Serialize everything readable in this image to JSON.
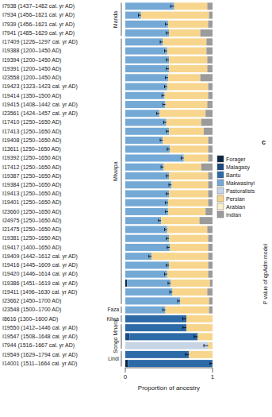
{
  "chart_data": {
    "type": "bar",
    "orientation": "horizontal",
    "stacked": true,
    "x_label": "Proportion of ancestry",
    "annotations": [
      "c",
      "P value of qpAdm model"
    ],
    "categories": [
      "I7938 (1437–1482 cal. yr AD)",
      "I7934 (1456–1621 cal. yr AD)",
      "I7939 (1456–1621 cal. yr AD)",
      "I7941 (1485–1629 cal. yr AD)",
      "I17409 (1226–1297 cal. yr AD)",
      "I19388 (1200–1450 AD)",
      "I19394 (1200–1450 AD)",
      "I19391 (1200–1450 AD)",
      "I23558 (1200–1450 AD)",
      "I19423 (1323–1423 cal. yr AD)",
      "I19414 (1350–1500 AD)",
      "I19415 (1408–1442 cal. yr AD)",
      "I23561 (1424–1457 cal. yr AD)",
      "I17410 (1250–1650 AD)",
      "I17413 (1250–1650 AD)",
      "I19408 (1250–1650 AD)",
      "I13611 (1250–1650 AD)",
      "I19392 (1250–1650 AD)",
      "I17412 (1250–1650 AD)",
      "I19387 (1250–1650 AD)",
      "I19384 (1250–1650 AD)",
      "I19413 (1250–1650 AD)",
      "I19401 (1250–1650 AD)",
      "I23660 (1250–1650 AD)",
      "I24975 (1250–1650 AD)",
      "I21475 (1250–1650 AD)",
      "I19381 (1250–1650 AD)",
      "I19417 (1400–1650 AD)",
      "I19409 (1442–1612 cal. yr AD)",
      "I19416 (1445–1609 cal. yr AD)",
      "I19420 (1446–1614 cal. yr AD)",
      "I19386 (1451–1619 cal. yr AD)",
      "I19411 (1496–1630 cal. yr AD)",
      "I23662 (1450–1700 AD)",
      "I23548 (1500–1700 AD)",
      "I8616 (1300–1600 AD)",
      "I19550 (1412–1446 cal. yr AD)",
      "I19547 (1508–1648 cal. yr AD)",
      "I7944 (1516–1667 cal. yr AD)",
      "I19549 (1629–1794 cal. yr AD)",
      "I14001 (1511–1664 cal. yr AD)"
    ],
    "groups": [
      {
        "label": "Manda",
        "count": 4
      },
      {
        "label": "Mtwapa",
        "count": 30
      },
      {
        "label": "Faza",
        "count": 1
      },
      {
        "label": "Kilwa",
        "count": 1
      },
      {
        "label": "Songo Mnara",
        "count": 3
      },
      {
        "label": "Lindi",
        "count": 2
      }
    ],
    "series": [
      {
        "name": "Forager",
        "color": "#0b2545",
        "values": [
          0,
          0,
          0,
          0,
          0,
          0,
          0,
          0,
          0,
          0,
          0,
          0,
          0,
          0,
          0,
          0,
          0,
          0,
          0,
          0,
          0,
          0,
          0,
          0,
          0,
          0,
          0,
          0,
          0,
          0,
          0,
          0.02,
          0,
          0,
          0,
          0,
          0,
          0,
          0,
          0,
          0.03
        ]
      },
      {
        "name": "Malagasy",
        "color": "#1b4a82",
        "values": [
          0,
          0,
          0,
          0,
          0,
          0,
          0,
          0,
          0,
          0,
          0,
          0,
          0,
          0,
          0,
          0,
          0,
          0,
          0,
          0,
          0,
          0,
          0,
          0,
          0,
          0,
          0,
          0,
          0,
          0,
          0,
          0,
          0,
          0,
          0,
          0,
          0,
          0.05,
          0,
          0,
          0
        ]
      },
      {
        "name": "Bantu",
        "color": "#2c6aa8",
        "values": [
          0,
          0,
          0,
          0,
          0,
          0,
          0,
          0,
          0,
          0,
          0,
          0,
          0,
          0,
          0,
          0,
          0,
          0,
          0,
          0,
          0,
          0,
          0,
          0,
          0,
          0,
          0,
          0,
          0,
          0,
          0,
          0,
          0,
          0,
          0,
          0.7,
          0.7,
          0.78,
          0,
          0.73,
          0.97
        ]
      },
      {
        "name": "Makwasinyi",
        "color": "#74a9d6",
        "values": [
          0.56,
          0.18,
          0.49,
          0.5,
          0.43,
          0.48,
          0.5,
          0.5,
          0.49,
          0.48,
          0.45,
          0.46,
          0.39,
          0.47,
          0.5,
          0.43,
          0.51,
          0.67,
          0.44,
          0.5,
          0.53,
          0.5,
          0.49,
          0.49,
          0.41,
          0.48,
          0.5,
          0.51,
          0.3,
          0.5,
          0.48,
          0.5,
          0.54,
          0.63,
          0.46,
          0,
          0,
          0,
          0,
          0,
          0
        ]
      },
      {
        "name": "Pastoralists",
        "color": "#c7d4e6",
        "values": [
          0,
          0,
          0,
          0,
          0,
          0,
          0,
          0,
          0,
          0,
          0,
          0,
          0,
          0,
          0,
          0,
          0,
          0,
          0,
          0,
          0,
          0,
          0,
          0,
          0,
          0,
          0,
          0,
          0,
          0,
          0,
          0,
          0,
          0,
          0,
          0,
          0,
          0,
          0.95,
          0,
          0
        ]
      },
      {
        "name": "Persian",
        "color": "#f7d58c",
        "values": [
          0.38,
          0.78,
          0.46,
          0.36,
          0.5,
          0.45,
          0.44,
          0.44,
          0.37,
          0.47,
          0.5,
          0.48,
          0.53,
          0.4,
          0.4,
          0.52,
          0.44,
          0.28,
          0.43,
          0.45,
          0.42,
          0.45,
          0.46,
          0.43,
          0.44,
          0.46,
          0.45,
          0.44,
          0.65,
          0.45,
          0.47,
          0.45,
          0.4,
          0.33,
          0.5,
          0.3,
          0.3,
          0.17,
          0.05,
          0.27,
          0
        ]
      },
      {
        "name": "Arabian",
        "color": "#fbf0cc",
        "values": [
          0,
          0,
          0,
          0,
          0,
          0,
          0,
          0,
          0,
          0,
          0,
          0,
          0,
          0,
          0,
          0,
          0,
          0,
          0,
          0,
          0,
          0,
          0,
          0,
          0,
          0,
          0,
          0,
          0,
          0,
          0,
          0,
          0,
          0,
          0,
          0,
          0,
          0,
          0,
          0,
          0
        ]
      },
      {
        "name": "Indian",
        "color": "#9b9b9b",
        "values": [
          0.06,
          0.04,
          0.05,
          0.14,
          0.07,
          0.07,
          0.06,
          0.06,
          0.14,
          0.05,
          0.05,
          0.06,
          0.08,
          0.13,
          0.1,
          0.05,
          0.05,
          0.05,
          0.13,
          0.05,
          0.05,
          0.05,
          0.05,
          0.08,
          0.15,
          0.06,
          0.05,
          0.05,
          0.05,
          0.05,
          0.05,
          0.03,
          0.06,
          0.04,
          0.04,
          0,
          0,
          0,
          0,
          0,
          0
        ]
      }
    ],
    "error": [
      0.04,
      0.03,
      0.03,
      0.03,
      0.03,
      0.03,
      0.03,
      0.03,
      0.03,
      0.03,
      0.03,
      0.03,
      0.03,
      0.03,
      0.03,
      0.03,
      0.03,
      0.03,
      0.03,
      0.03,
      0.03,
      0.03,
      0.03,
      0.03,
      0.03,
      0.03,
      0.03,
      0.03,
      0.03,
      0.03,
      0.03,
      0.03,
      0.03,
      0.03,
      0.03,
      0.04,
      0.04,
      0.04,
      0.05,
      0.04,
      0.03
    ],
    "xlim": [
      0,
      1
    ],
    "xticks": [
      0,
      1
    ],
    "legend": "right",
    "grid": false
  }
}
